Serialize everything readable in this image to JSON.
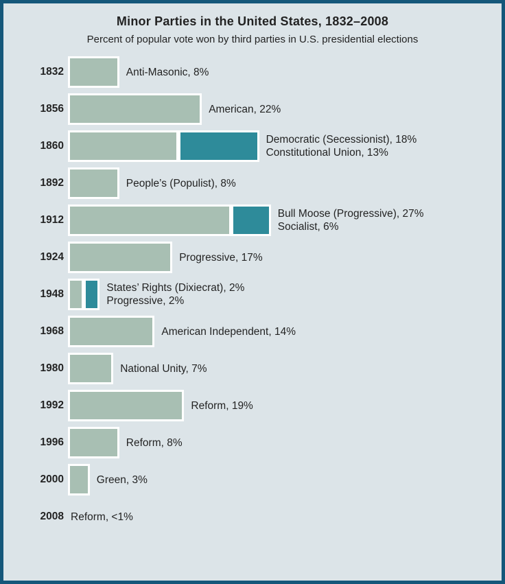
{
  "panel": {
    "title": "Minor Parties in the United States, 1832–2008",
    "subtitle": "Percent of popular vote won by third parties in U.S. presidential elections"
  },
  "colors": {
    "background": "#dce4e8",
    "border": "#15577a",
    "sage": "#a8bfb3",
    "teal": "#2e8b9a",
    "text": "#232323"
  },
  "chart_data": {
    "type": "bar",
    "orientation": "horizontal",
    "title": "Minor Parties in the United States, 1832–2008",
    "subtitle": "Percent of popular vote won by third parties in U.S. presidential elections",
    "unit": "percent of popular vote",
    "x_range": [
      0,
      33
    ],
    "legend": "none",
    "grid": false,
    "rows": [
      {
        "year": "1832",
        "segments": [
          {
            "party": "Anti-Masonic",
            "value": 8,
            "color": "sage"
          }
        ],
        "labels": [
          "Anti-Masonic, 8%"
        ]
      },
      {
        "year": "1856",
        "segments": [
          {
            "party": "American",
            "value": 22,
            "color": "sage"
          }
        ],
        "labels": [
          "American, 22%"
        ]
      },
      {
        "year": "1860",
        "segments": [
          {
            "party": "Democratic (Secessionist)",
            "value": 18,
            "color": "sage"
          },
          {
            "party": "Constitutional Union",
            "value": 13,
            "color": "teal"
          }
        ],
        "labels": [
          "Democratic (Secessionist), 18%",
          "Constitutional Union, 13%"
        ]
      },
      {
        "year": "1892",
        "segments": [
          {
            "party": "People’s (Populist)",
            "value": 8,
            "color": "sage"
          }
        ],
        "labels": [
          "People’s (Populist), 8%"
        ]
      },
      {
        "year": "1912",
        "segments": [
          {
            "party": "Bull Moose (Progressive)",
            "value": 27,
            "color": "sage"
          },
          {
            "party": "Socialist",
            "value": 6,
            "color": "teal"
          }
        ],
        "labels": [
          "Bull Moose (Progressive), 27%",
          "Socialist, 6%"
        ]
      },
      {
        "year": "1924",
        "segments": [
          {
            "party": "Progressive",
            "value": 17,
            "color": "sage"
          }
        ],
        "labels": [
          "Progressive, 17%"
        ]
      },
      {
        "year": "1948",
        "segments": [
          {
            "party": "States’ Rights (Dixiecrat)",
            "value": 2,
            "color": "sage"
          },
          {
            "party": "Progressive",
            "value": 2,
            "color": "teal"
          }
        ],
        "labels": [
          "States’ Rights (Dixiecrat), 2%",
          "Progressive, 2%"
        ]
      },
      {
        "year": "1968",
        "segments": [
          {
            "party": "American Independent",
            "value": 14,
            "color": "sage"
          }
        ],
        "labels": [
          "American Independent, 14%"
        ]
      },
      {
        "year": "1980",
        "segments": [
          {
            "party": "National Unity",
            "value": 7,
            "color": "sage"
          }
        ],
        "labels": [
          "National Unity, 7%"
        ]
      },
      {
        "year": "1992",
        "segments": [
          {
            "party": "Reform",
            "value": 19,
            "color": "sage"
          }
        ],
        "labels": [
          "Reform, 19%"
        ]
      },
      {
        "year": "1996",
        "segments": [
          {
            "party": "Reform",
            "value": 8,
            "color": "sage"
          }
        ],
        "labels": [
          "Reform, 8%"
        ]
      },
      {
        "year": "2000",
        "segments": [
          {
            "party": "Green",
            "value": 3,
            "color": "sage"
          }
        ],
        "labels": [
          "Green, 3%"
        ]
      },
      {
        "year": "2008",
        "segments": [
          {
            "party": "Reform",
            "value": "<1",
            "color": "sage"
          }
        ],
        "labels": [
          "Reform, <1%"
        ]
      }
    ]
  }
}
